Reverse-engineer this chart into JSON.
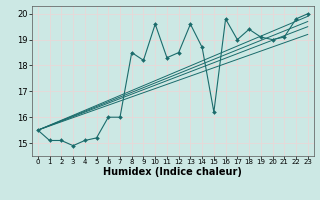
{
  "bg_color": "#cce8e4",
  "grid_color": "#e8d8d8",
  "line_color": "#1a6b6b",
  "xlabel": "Humidex (Indice chaleur)",
  "xlim": [
    -0.5,
    23.5
  ],
  "ylim": [
    14.5,
    20.3
  ],
  "yticks": [
    15,
    16,
    17,
    18,
    19,
    20
  ],
  "xticks": [
    0,
    1,
    2,
    3,
    4,
    5,
    6,
    7,
    8,
    9,
    10,
    11,
    12,
    13,
    14,
    15,
    16,
    17,
    18,
    19,
    20,
    21,
    22,
    23
  ],
  "main_line_x": [
    0,
    1,
    2,
    3,
    4,
    5,
    6,
    7,
    8,
    9,
    10,
    11,
    12,
    13,
    14,
    15,
    16,
    17,
    18,
    19,
    20,
    21,
    22,
    23
  ],
  "main_line_y": [
    15.5,
    15.1,
    15.1,
    14.9,
    15.1,
    15.2,
    16.0,
    16.0,
    18.5,
    18.2,
    19.6,
    18.3,
    18.5,
    19.6,
    18.7,
    16.2,
    19.8,
    19.0,
    19.4,
    19.1,
    19.0,
    19.1,
    19.8,
    20.0
  ],
  "trend1_x": [
    0,
    23
  ],
  "trend1_y": [
    15.5,
    19.2
  ],
  "trend2_x": [
    0,
    23
  ],
  "trend2_y": [
    15.5,
    19.5
  ],
  "trend3_x": [
    0,
    23
  ],
  "trend3_y": [
    15.5,
    19.7
  ],
  "trend4_x": [
    0,
    23
  ],
  "trend4_y": [
    15.5,
    19.9
  ],
  "title_fontsize": 6,
  "xlabel_fontsize": 7,
  "tick_fontsize": 5
}
